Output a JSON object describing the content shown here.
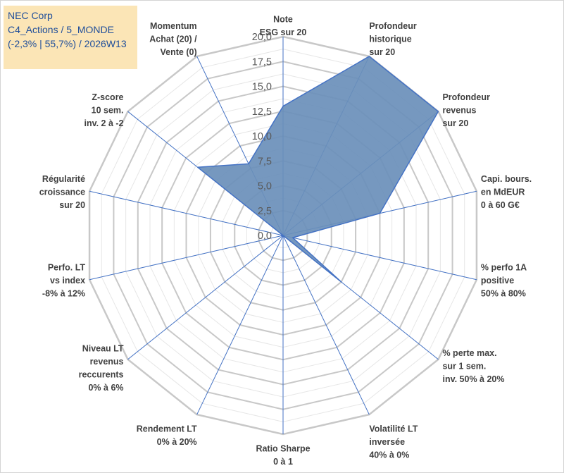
{
  "title_box": {
    "line1": "NEC Corp",
    "line2": "C4_Actions / 5_MONDE",
    "line3": "(-2,3% | 55,7%) / 2026W13"
  },
  "colors": {
    "fill": "#6a8fba",
    "stroke": "#4472c4",
    "grid": "#c8c8c8",
    "title_bg": "#fbe5b6",
    "title_text": "#1f4e9a"
  },
  "chart_data": {
    "type": "radar",
    "rmin": 0,
    "rmax": 20,
    "tick_step": 2.5,
    "tick_labels": [
      "0,0",
      "2,5",
      "5,0",
      "7,5",
      "10,0",
      "12,5",
      "15,0",
      "17,5",
      "20,0"
    ],
    "grid": true,
    "axes": [
      "Note\nESG sur 20",
      "Profondeur\nhistorique\nsur 20",
      "Profondeur\nrevenus\nsur 20",
      "Capi. bours.\nen MdEUR\n0 à 60 G€",
      "% perfo 1A\npositive\n50% à 80%",
      "% perte max.\nsur 1 sem.\ninv. 50% à 20%",
      "Volatilité LT\ninversée\n40% à 0%",
      "Ratio Sharpe\n0 à 1",
      "Rendement LT\n0% à 20%",
      "Niveau LT\nrevenus\nreccurents\n0% à 6%",
      "Perfo. LT\nvs index\n-8% à 12%",
      "Régularité\ncroissance\nsur 20",
      "Z-score\n10 sem.\ninv. 2 à -2",
      "Momentum\nAchat (20) /\nVente (0)"
    ],
    "values": [
      13,
      20,
      20,
      10,
      1,
      7.5,
      0,
      0,
      0,
      0,
      0,
      0,
      11,
      8
    ]
  }
}
